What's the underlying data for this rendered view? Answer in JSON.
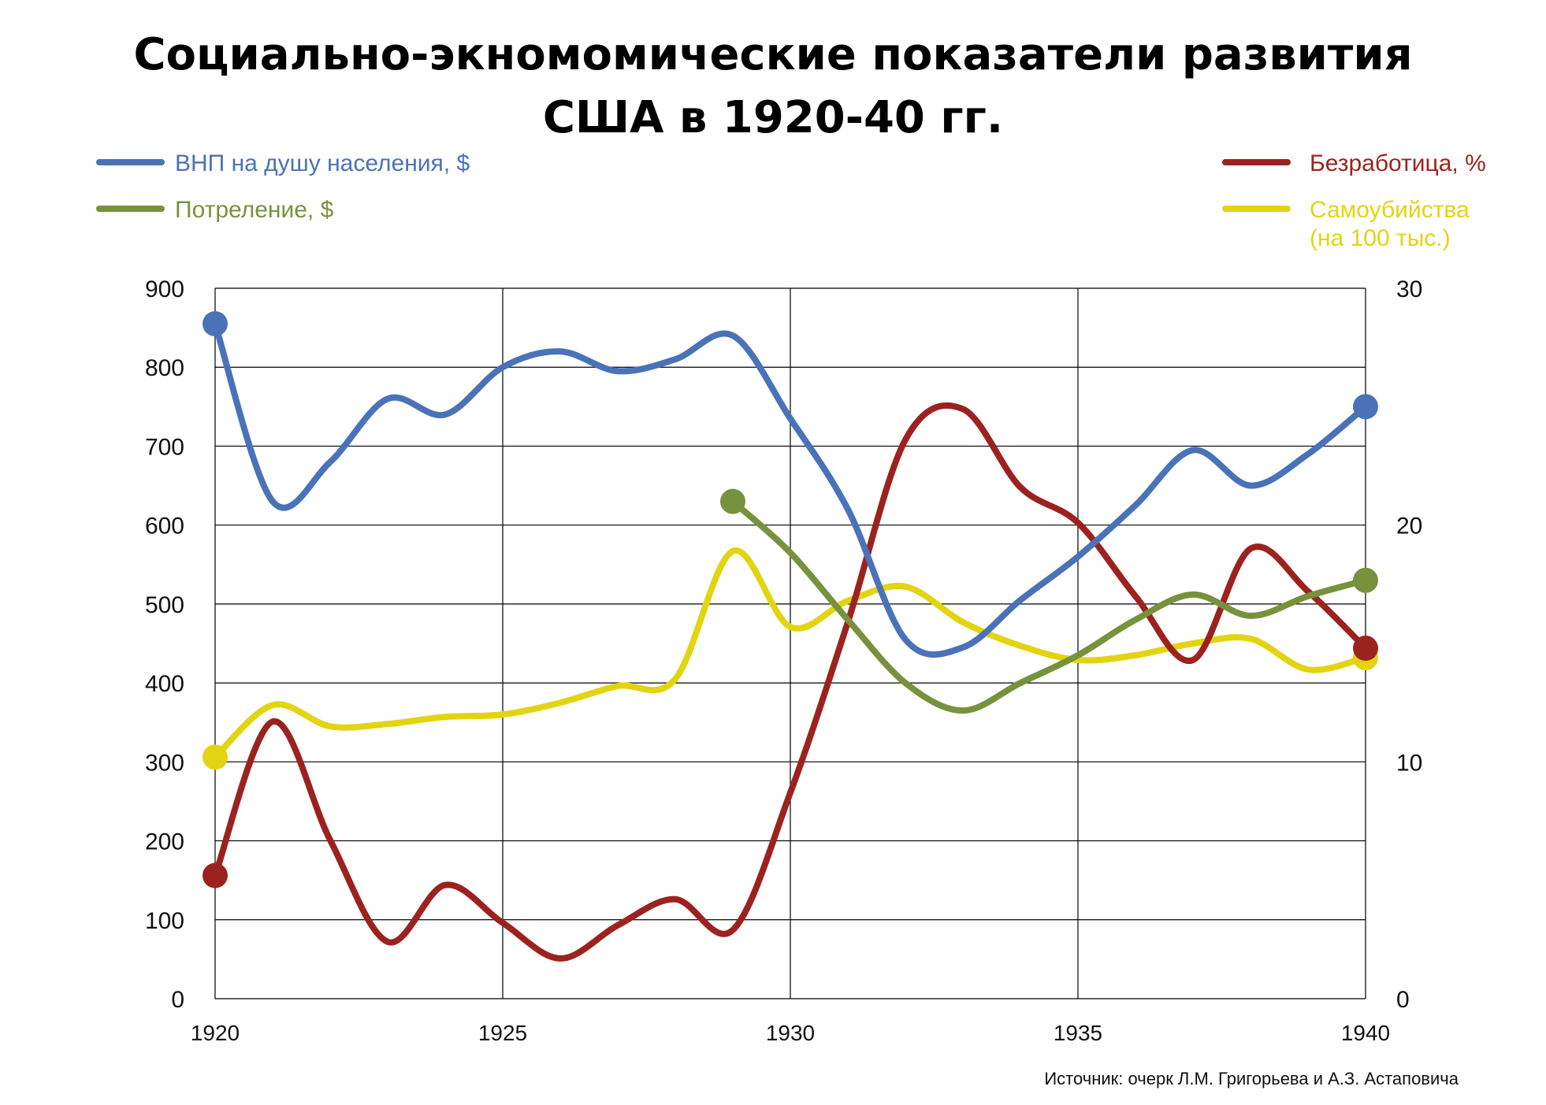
{
  "chart_data": {
    "type": "line",
    "title_lines": [
      "Социально-экномомические показатели развития",
      "США в 1920-40 гг."
    ],
    "x_ticks": [
      "1920",
      "1925",
      "1930",
      "1935",
      "1940"
    ],
    "xlim": [
      1920,
      1940
    ],
    "y_left_ticks": [
      "0",
      "100",
      "200",
      "300",
      "400",
      "500",
      "600",
      "700",
      "800",
      "900"
    ],
    "ylim_left": [
      0,
      900
    ],
    "y_right_ticks": [
      "0",
      "10",
      "20",
      "30"
    ],
    "ylim_right": [
      0,
      30
    ],
    "grid": true,
    "legend": {
      "left": [
        "ВНП на  душу  населения, $",
        "Потреление, $"
      ],
      "right": [
        "Безработица, %",
        "Самоубийства",
        "(на 100 тыс.)"
      ]
    },
    "colors": {
      "gnp": "#4a72b8",
      "consumption": "#77923c",
      "unemployment": "#9c2220",
      "suicides": "#e3d412"
    },
    "series": [
      {
        "key": "gnp",
        "name": "ВНП на  душу  населения, $",
        "axis": "left",
        "color": "#4a72b8",
        "points": [
          [
            1920,
            855
          ],
          [
            1921,
            630
          ],
          [
            1922,
            680
          ],
          [
            1923,
            760
          ],
          [
            1924,
            740
          ],
          [
            1925,
            800
          ],
          [
            1926,
            820
          ],
          [
            1927,
            795
          ],
          [
            1928,
            810
          ],
          [
            1929,
            840
          ],
          [
            1930,
            735
          ],
          [
            1931,
            620
          ],
          [
            1932,
            455
          ],
          [
            1933,
            445
          ],
          [
            1934,
            505
          ],
          [
            1935,
            560
          ],
          [
            1936,
            625
          ],
          [
            1937,
            695
          ],
          [
            1938,
            650
          ],
          [
            1939,
            690
          ],
          [
            1940,
            750
          ]
        ],
        "end_markers": true
      },
      {
        "key": "consumption",
        "name": "Потреление, $",
        "axis": "left",
        "color": "#77923c",
        "points": [
          [
            1929,
            630
          ],
          [
            1930,
            565
          ],
          [
            1931,
            480
          ],
          [
            1932,
            400
          ],
          [
            1933,
            365
          ],
          [
            1934,
            400
          ],
          [
            1935,
            435
          ],
          [
            1936,
            480
          ],
          [
            1937,
            512
          ],
          [
            1938,
            485
          ],
          [
            1939,
            510
          ],
          [
            1940,
            530
          ]
        ],
        "end_markers": true
      },
      {
        "key": "unemployment",
        "name": "Безработица, %",
        "axis": "right",
        "color": "#9c2220",
        "points": [
          [
            1920,
            5.2
          ],
          [
            1921,
            11.7
          ],
          [
            1922,
            6.7
          ],
          [
            1923,
            2.4
          ],
          [
            1924,
            4.8
          ],
          [
            1925,
            3.2
          ],
          [
            1926,
            1.7
          ],
          [
            1927,
            3.1
          ],
          [
            1928,
            4.2
          ],
          [
            1929,
            2.9
          ],
          [
            1930,
            8.7
          ],
          [
            1931,
            15.9
          ],
          [
            1932,
            23.6
          ],
          [
            1933,
            24.9
          ],
          [
            1934,
            21.6
          ],
          [
            1935,
            20.1
          ],
          [
            1936,
            17.0
          ],
          [
            1937,
            14.3
          ],
          [
            1938,
            19.0
          ],
          [
            1939,
            17.2
          ],
          [
            1940,
            14.8
          ]
        ],
        "end_markers": true
      },
      {
        "key": "suicides",
        "name": "Самоубийства (на 100 тыс.)",
        "axis": "right",
        "color": "#e3d412",
        "points": [
          [
            1920,
            10.2
          ],
          [
            1921,
            12.4
          ],
          [
            1922,
            11.5
          ],
          [
            1923,
            11.6
          ],
          [
            1924,
            11.9
          ],
          [
            1925,
            12.0
          ],
          [
            1926,
            12.5
          ],
          [
            1927,
            13.2
          ],
          [
            1928,
            13.5
          ],
          [
            1929,
            18.9
          ],
          [
            1930,
            15.7
          ],
          [
            1931,
            16.8
          ],
          [
            1932,
            17.4
          ],
          [
            1933,
            15.9
          ],
          [
            1934,
            14.9
          ],
          [
            1935,
            14.3
          ],
          [
            1936,
            14.5
          ],
          [
            1937,
            15.0
          ],
          [
            1938,
            15.2
          ],
          [
            1939,
            13.9
          ],
          [
            1940,
            14.4
          ]
        ],
        "end_markers": true
      }
    ],
    "source": "Источник: очерк Л.М. Григорьева и А.З. Астаповича"
  }
}
